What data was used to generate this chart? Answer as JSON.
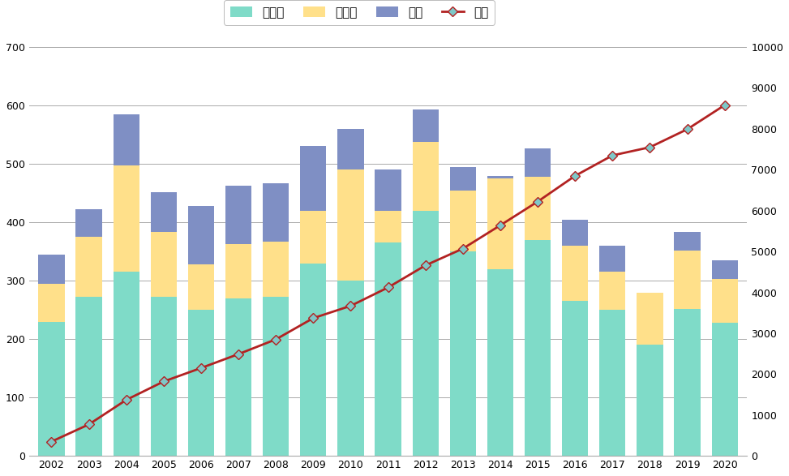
{
  "years": [
    2002,
    2003,
    2004,
    2005,
    2006,
    2007,
    2008,
    2009,
    2010,
    2011,
    2012,
    2013,
    2014,
    2015,
    2016,
    2017,
    2018,
    2019,
    2020
  ],
  "shogakko": [
    230,
    272,
    315,
    272,
    250,
    270,
    272,
    330,
    300,
    365,
    420,
    350,
    320,
    370,
    265,
    250,
    190,
    252,
    228
  ],
  "chugakko": [
    65,
    103,
    183,
    112,
    78,
    93,
    95,
    90,
    190,
    55,
    118,
    105,
    155,
    108,
    95,
    65,
    90,
    100,
    75
  ],
  "koko": [
    50,
    48,
    87,
    68,
    100,
    100,
    100,
    110,
    70,
    70,
    55,
    40,
    5,
    48,
    45,
    45,
    0,
    32,
    32
  ],
  "ruikei": [
    350,
    770,
    1370,
    1820,
    2150,
    2490,
    2850,
    3370,
    3670,
    4120,
    4660,
    5070,
    5640,
    6220,
    6850,
    7350,
    7550,
    7990,
    8580
  ],
  "colors": {
    "shogakko": "#7FDBC8",
    "chugakko": "#FFE08A",
    "koko": "#7F8FC4",
    "ruikei_line": "#B22222",
    "ruikei_marker": "#7EC8C8"
  },
  "left_ylim": [
    0,
    700
  ],
  "right_ylim": [
    0,
    10000
  ],
  "left_yticks": [
    0,
    100,
    200,
    300,
    400,
    500,
    600,
    700
  ],
  "right_yticks": [
    0,
    1000,
    2000,
    3000,
    4000,
    5000,
    6000,
    7000,
    8000,
    9000,
    10000
  ],
  "legend_labels": [
    "小学校",
    "中学校",
    "高校",
    "累計"
  ],
  "title": "",
  "figsize": [
    9.73,
    5.87
  ]
}
